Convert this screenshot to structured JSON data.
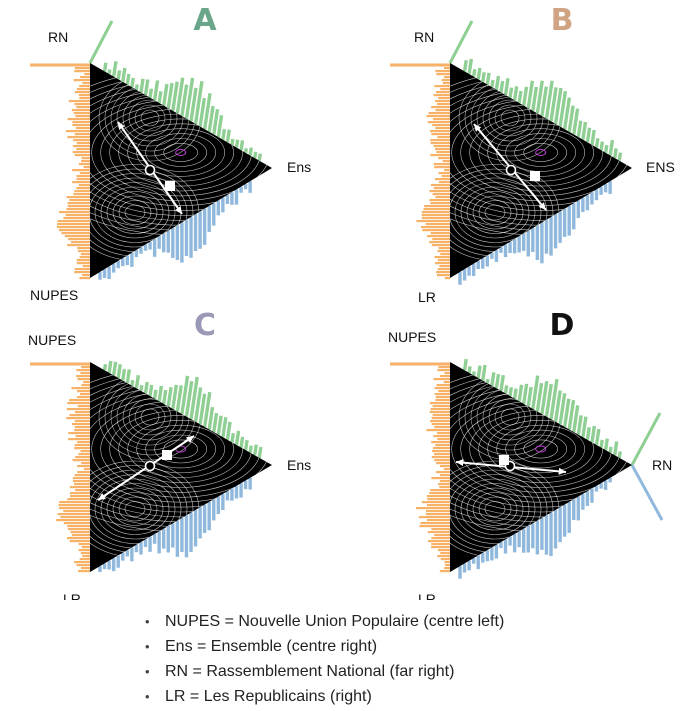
{
  "colors": {
    "green": "#8fcf93",
    "orange": "#f7b267",
    "blue": "#8fb8dc",
    "letterA": "#6ba58a",
    "letterB": "#d0a482",
    "letterC": "#9a9ab8",
    "letterD": "#111111",
    "density_bg": "#000000",
    "contour": "#ffffff",
    "peak": "#c03ad8"
  },
  "panels": [
    {
      "letter": "A",
      "vertex_labels": {
        "top": "RN",
        "right": "Ens",
        "bottom": "NUPES"
      }
    },
    {
      "letter": "B",
      "vertex_labels": {
        "top": "RN",
        "right": "ENS",
        "bottom": "LR"
      }
    },
    {
      "letter": "C",
      "vertex_labels": {
        "top": "NUPES",
        "right": "Ens",
        "bottom": "LR"
      }
    },
    {
      "letter": "D",
      "vertex_labels": {
        "top": "NUPES",
        "right": "RN",
        "bottom": "LR"
      }
    }
  ],
  "legend": [
    "NUPES = Nouvelle Union Populaire (centre left)",
    "Ens = Ensemble (centre right)",
    "RN = Rassemblement National (far right)",
    "LR = Les Republicains (right)"
  ]
}
